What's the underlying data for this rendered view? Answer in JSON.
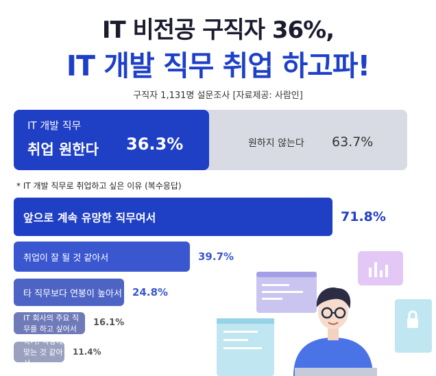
{
  "header": {
    "title_line1": "IT 비전공 구직자 36%,",
    "title_line2": "IT 개발 직무 취업 하고파!",
    "source": "구직자 1,131명 설문조사 [자료제공: 사람인]"
  },
  "split": {
    "yes_label_line1": "IT 개발 직무",
    "yes_label_line2": "취업 원한다",
    "yes_value": "36.3%",
    "no_label": "원하지 않는다",
    "no_value": "63.7%"
  },
  "note": "* IT 개발 직무로 취업하고 싶은 이유 (복수응답)",
  "chart_data": [
    {
      "type": "bar",
      "categories": [
        "IT 개발 직무 취업 원한다",
        "원하지 않는다"
      ],
      "values": [
        36.3,
        63.7
      ]
    },
    {
      "type": "bar",
      "title": "IT 개발 직무로 취업하고 싶은 이유 (복수응답)",
      "categories": [
        "앞으로 계속 유망한 직무여서",
        "취업이 잘 될 것 같아서",
        "타 직무보다 연봉이 높아서",
        "IT 회사의 주요 직무를 하고 싶어서",
        "특기, 적성에 맞는 것 같아서"
      ],
      "values": [
        71.8,
        39.7,
        24.8,
        16.1,
        11.4
      ],
      "value_labels": [
        "71.8%",
        "39.7%",
        "24.8%",
        "16.1%",
        "11.4%"
      ],
      "colors": [
        "#1f3fc4",
        "#3a57cf",
        "#4d64c4",
        "#6f7ab8",
        "#9aa1bf"
      ]
    }
  ],
  "colors": {
    "brand_blue": "#1e40c8",
    "grey_bar": "#d8dbe3"
  }
}
